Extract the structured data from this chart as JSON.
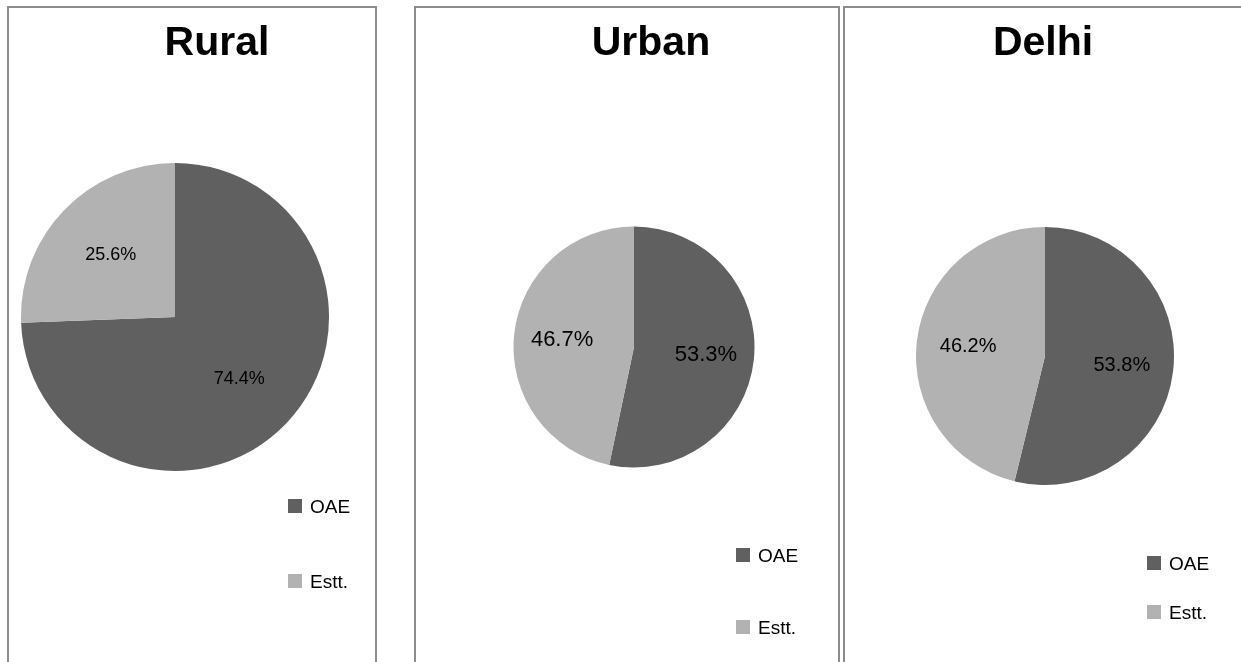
{
  "chart_data": [
    {
      "type": "pie",
      "title": "Rural",
      "categories": [
        "OAE",
        "Estt."
      ],
      "values": [
        74.4,
        25.6
      ],
      "colors": [
        "#606060",
        "#b2b2b2"
      ],
      "value_labels": [
        "74.4%",
        "25.6%"
      ],
      "legend": "bottom right"
    },
    {
      "type": "pie",
      "title": "Urban",
      "categories": [
        "OAE",
        "Estt."
      ],
      "values": [
        53.3,
        46.7
      ],
      "colors": [
        "#606060",
        "#b2b2b2"
      ],
      "value_labels": [
        "53.3%",
        "46.7%"
      ],
      "legend": "bottom right"
    },
    {
      "type": "pie",
      "title": "Delhi",
      "categories": [
        "OAE",
        "Estt."
      ],
      "values": [
        53.8,
        46.2
      ],
      "colors": [
        "#606060",
        "#b2b2b2"
      ],
      "value_labels": [
        "53.8%",
        "46.2%"
      ],
      "legend": "bottom right"
    }
  ]
}
